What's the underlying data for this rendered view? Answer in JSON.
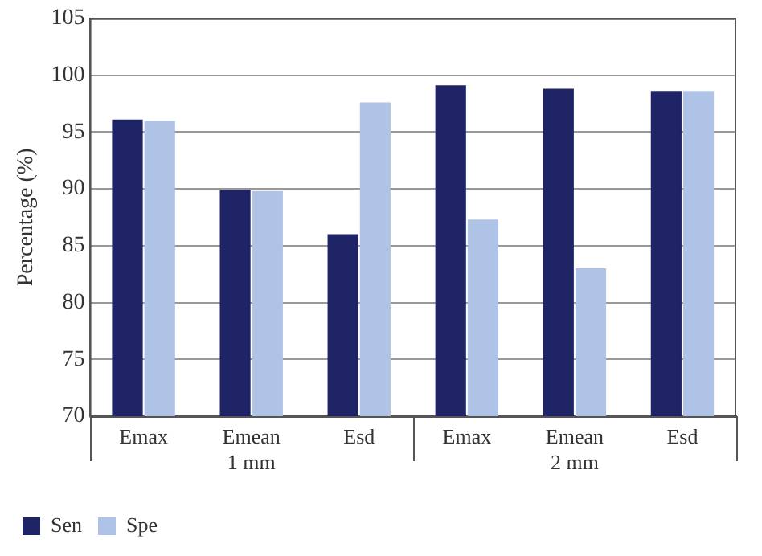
{
  "chart_data": {
    "type": "bar",
    "ylabel": "Percentage (%)",
    "categories": [
      "Emax",
      "Emean",
      "Esd",
      "Emax",
      "Emean",
      "Esd"
    ],
    "annotations": [
      "1 mm",
      "2 mm"
    ],
    "series": [
      {
        "name": "Sen",
        "color": "#1f2466",
        "values": [
          96.1,
          89.9,
          86.0,
          99.1,
          98.8,
          98.6
        ]
      },
      {
        "name": "Spe",
        "color": "#aec3e6",
        "values": [
          96.0,
          89.8,
          97.6,
          87.3,
          83.0,
          98.6
        ]
      }
    ],
    "ylim": [
      70,
      105
    ],
    "yticks": [
      70,
      75,
      80,
      85,
      90,
      95,
      100,
      105
    ],
    "grid": "y",
    "legend": "bottom left"
  }
}
